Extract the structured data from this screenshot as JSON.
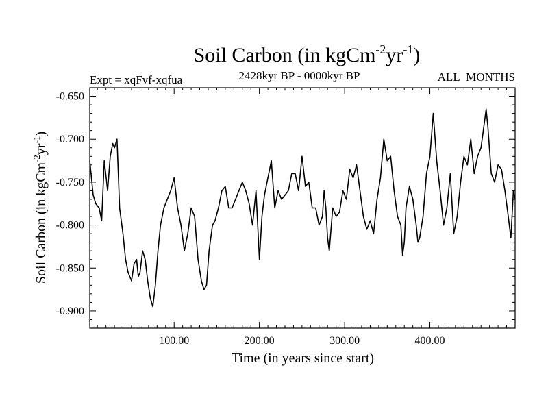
{
  "chart_data": {
    "type": "line",
    "title": {
      "base": "Soil Carbon (in kgCm",
      "sup1": "-2",
      "mid": "yr",
      "sup2": "-1",
      "end": ")"
    },
    "left_label": "Expt = xqFvf-xqfua",
    "subtitle": "2428kyr BP - 0000kyr BP",
    "right_label": "ALL_MONTHS",
    "xlabel": "Time (in years since start)",
    "ylabel": {
      "base": "Soil Carbon (in kgCm",
      "sup1": "-2",
      "mid": "yr",
      "sup2": "-1",
      "end": ")"
    },
    "xlim": [
      1,
      500
    ],
    "ylim": [
      -0.92,
      -0.64
    ],
    "x_major_ticks": [
      100,
      200,
      300,
      400
    ],
    "x_tick_labels": [
      "100.00",
      "200.00",
      "300.00",
      "400.00"
    ],
    "y_major_ticks": [
      -0.9,
      -0.85,
      -0.8,
      -0.75,
      -0.7,
      -0.65
    ],
    "y_tick_labels": [
      "-0.900",
      "-0.850",
      "-0.800",
      "-0.750",
      "-0.700",
      "-0.650"
    ],
    "series": [
      {
        "name": "Soil Carbon",
        "color": "#000000",
        "x": [
          1,
          5,
          8,
          12,
          15,
          18,
          22,
          25,
          28,
          30,
          33,
          36,
          40,
          43,
          46,
          50,
          53,
          56,
          58,
          60,
          63,
          66,
          69,
          72,
          75,
          78,
          81,
          84,
          88,
          92,
          96,
          100,
          104,
          108,
          112,
          116,
          120,
          124,
          128,
          132,
          135,
          138,
          141,
          145,
          148,
          152,
          156,
          160,
          164,
          168,
          172,
          176,
          180,
          184,
          188,
          192,
          196,
          198,
          200,
          203,
          206,
          210,
          214,
          218,
          222,
          226,
          230,
          234,
          238,
          242,
          246,
          250,
          254,
          258,
          262,
          266,
          270,
          274,
          276,
          278,
          280,
          282,
          286,
          290,
          294,
          298,
          302,
          306,
          310,
          314,
          318,
          322,
          326,
          330,
          334,
          338,
          342,
          346,
          350,
          354,
          358,
          362,
          366,
          368,
          370,
          372,
          376,
          380,
          384,
          386,
          388,
          392,
          396,
          400,
          404,
          408,
          412,
          416,
          420,
          424,
          428,
          432,
          436,
          440,
          444,
          448,
          452,
          456,
          460,
          464,
          466,
          468,
          472,
          476,
          480,
          484,
          488,
          492,
          495,
          498,
          500
        ],
        "values": [
          -0.725,
          -0.765,
          -0.775,
          -0.78,
          -0.795,
          -0.725,
          -0.76,
          -0.72,
          -0.705,
          -0.71,
          -0.7,
          -0.78,
          -0.81,
          -0.84,
          -0.855,
          -0.865,
          -0.845,
          -0.84,
          -0.86,
          -0.855,
          -0.83,
          -0.84,
          -0.865,
          -0.885,
          -0.895,
          -0.87,
          -0.83,
          -0.8,
          -0.78,
          -0.77,
          -0.76,
          -0.745,
          -0.78,
          -0.8,
          -0.83,
          -0.81,
          -0.78,
          -0.79,
          -0.84,
          -0.865,
          -0.875,
          -0.87,
          -0.83,
          -0.8,
          -0.795,
          -0.78,
          -0.76,
          -0.755,
          -0.78,
          -0.78,
          -0.77,
          -0.76,
          -0.75,
          -0.76,
          -0.775,
          -0.8,
          -0.76,
          -0.8,
          -0.84,
          -0.79,
          -0.765,
          -0.745,
          -0.725,
          -0.78,
          -0.76,
          -0.77,
          -0.765,
          -0.76,
          -0.74,
          -0.74,
          -0.76,
          -0.72,
          -0.755,
          -0.75,
          -0.78,
          -0.78,
          -0.8,
          -0.79,
          -0.76,
          -0.78,
          -0.815,
          -0.83,
          -0.78,
          -0.79,
          -0.785,
          -0.76,
          -0.77,
          -0.735,
          -0.745,
          -0.73,
          -0.76,
          -0.79,
          -0.805,
          -0.795,
          -0.81,
          -0.77,
          -0.745,
          -0.7,
          -0.725,
          -0.72,
          -0.76,
          -0.79,
          -0.8,
          -0.835,
          -0.82,
          -0.78,
          -0.755,
          -0.77,
          -0.8,
          -0.82,
          -0.815,
          -0.79,
          -0.74,
          -0.72,
          -0.67,
          -0.725,
          -0.76,
          -0.8,
          -0.78,
          -0.74,
          -0.81,
          -0.79,
          -0.75,
          -0.72,
          -0.73,
          -0.7,
          -0.74,
          -0.72,
          -0.71,
          -0.68,
          -0.665,
          -0.685,
          -0.74,
          -0.75,
          -0.73,
          -0.735,
          -0.76,
          -0.79,
          -0.815,
          -0.76,
          -0.77
        ]
      }
    ]
  }
}
